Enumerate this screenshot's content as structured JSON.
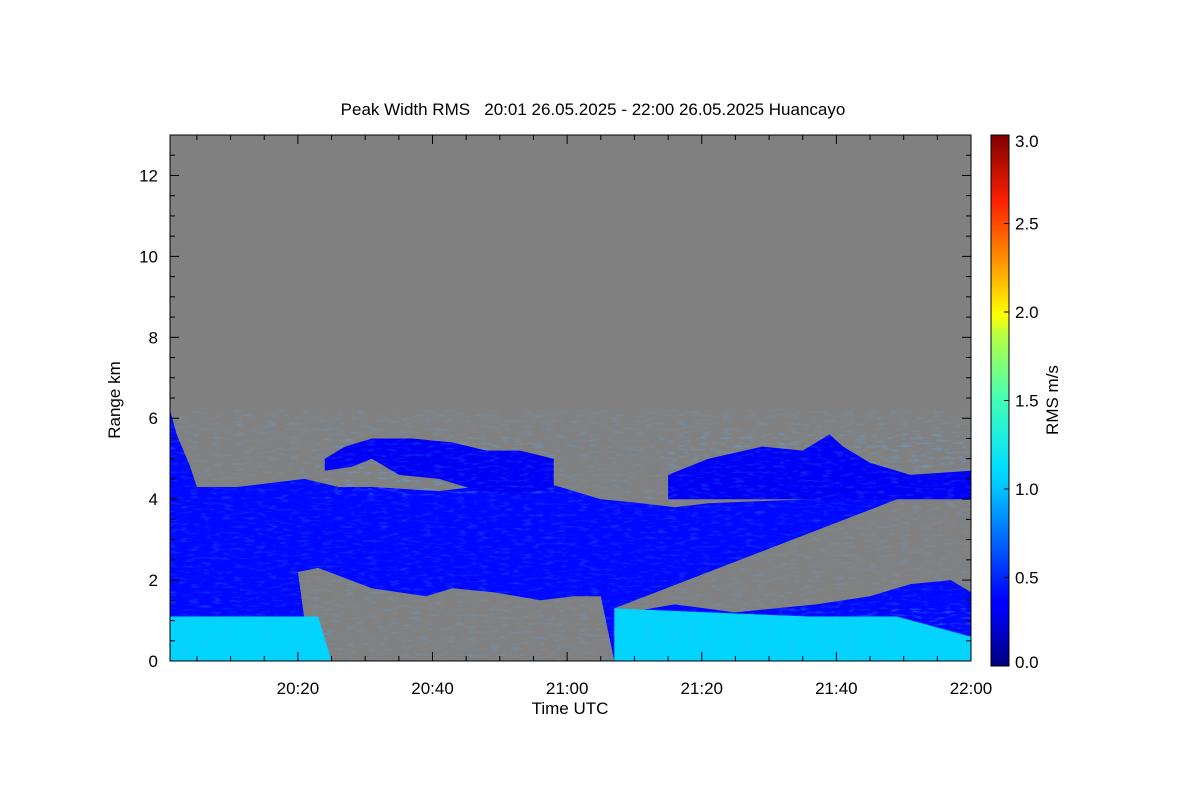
{
  "chart_data": {
    "type": "heatmap",
    "title": "Peak Width RMS   20:01 26.05.2025 - 22:00 26.05.2025 Huancayo",
    "xlabel": "Time UTC",
    "ylabel": "Range km",
    "colorbar_label": "RMS m/s",
    "x_range": [
      "20:01",
      "22:00"
    ],
    "y_range": [
      0,
      13
    ],
    "color_range": [
      0.0,
      3.0
    ],
    "colormap": "jet",
    "no_data_color": "#808080",
    "x_ticks": [
      {
        "label": "20:20",
        "minutes": 19
      },
      {
        "label": "20:40",
        "minutes": 39
      },
      {
        "label": "21:00",
        "minutes": 59
      },
      {
        "label": "21:20",
        "minutes": 79
      },
      {
        "label": "21:40",
        "minutes": 99
      },
      {
        "label": "22:00",
        "minutes": 119
      }
    ],
    "y_ticks": [
      {
        "label": "0",
        "value": 0
      },
      {
        "label": "2",
        "value": 2
      },
      {
        "label": "4",
        "value": 4
      },
      {
        "label": "6",
        "value": 6
      },
      {
        "label": "8",
        "value": 8
      },
      {
        "label": "10",
        "value": 10
      },
      {
        "label": "12",
        "value": 12
      }
    ],
    "colorbar_ticks": [
      {
        "label": "0.0",
        "value": 0.0
      },
      {
        "label": "0.5",
        "value": 0.5
      },
      {
        "label": "1.0",
        "value": 1.0
      },
      {
        "label": "1.5",
        "value": 1.5
      },
      {
        "label": "2.0",
        "value": 2.0
      },
      {
        "label": "2.5",
        "value": 2.5
      },
      {
        "label": "3.0",
        "value": 3.0
      }
    ],
    "echo_regions": [
      {
        "name": "main-layer",
        "top_km": [
          [
            0,
            6.2
          ],
          [
            1,
            5.6
          ],
          [
            3,
            4.8
          ],
          [
            4,
            4.3
          ],
          [
            10,
            4.3
          ],
          [
            20,
            4.5
          ],
          [
            25,
            4.3
          ],
          [
            30,
            4.3
          ],
          [
            40,
            4.2
          ],
          [
            50,
            4.4
          ],
          [
            56,
            4.4
          ],
          [
            64,
            4.0
          ],
          [
            70,
            3.9
          ],
          [
            75,
            3.8
          ],
          [
            80,
            3.9
          ],
          [
            95,
            4.0
          ],
          [
            105,
            4.1
          ],
          [
            114,
            4.3
          ],
          [
            119,
            4.7
          ]
        ],
        "bottom_km": [
          [
            0,
            0
          ],
          [
            24,
            0
          ],
          [
            20,
            1.0
          ],
          [
            19,
            2.2
          ],
          [
            22,
            2.3
          ],
          [
            30,
            1.8
          ],
          [
            38,
            1.6
          ],
          [
            42,
            1.8
          ],
          [
            48,
            1.7
          ],
          [
            55,
            1.5
          ],
          [
            60,
            1.6
          ],
          [
            64,
            1.6
          ],
          [
            66,
            0
          ],
          [
            119,
            0
          ],
          [
            119,
            1.7
          ],
          [
            116,
            2.0
          ],
          [
            110,
            1.9
          ],
          [
            104,
            1.6
          ],
          [
            96,
            1.4
          ],
          [
            90,
            1.3
          ],
          [
            84,
            1.2
          ],
          [
            75,
            1.4
          ],
          [
            68,
            1.2
          ],
          [
            66,
            1.3
          ]
        ],
        "typical_rms": 0.4
      },
      {
        "name": "upper-cloud-left",
        "top_km": [
          [
            23,
            5.0
          ],
          [
            26,
            5.3
          ],
          [
            30,
            5.5
          ],
          [
            36,
            5.5
          ],
          [
            42,
            5.4
          ],
          [
            47,
            5.2
          ],
          [
            52,
            5.2
          ],
          [
            57,
            5.0
          ]
        ],
        "bottom_km": [
          [
            23,
            4.7
          ],
          [
            27,
            4.8
          ],
          [
            30,
            5.0
          ],
          [
            34,
            4.6
          ],
          [
            40,
            4.5
          ],
          [
            46,
            4.2
          ],
          [
            52,
            4.1
          ],
          [
            57,
            4.3
          ]
        ],
        "typical_rms": 0.35
      },
      {
        "name": "upper-cloud-right",
        "top_km": [
          [
            74,
            4.6
          ],
          [
            80,
            5.0
          ],
          [
            88,
            5.3
          ],
          [
            94,
            5.2
          ],
          [
            98,
            5.6
          ],
          [
            100,
            5.3
          ],
          [
            104,
            4.9
          ],
          [
            110,
            4.6
          ],
          [
            119,
            4.7
          ]
        ],
        "bottom_km": [
          [
            74,
            4.0
          ],
          [
            119,
            4.0
          ]
        ],
        "typical_rms": 0.35
      },
      {
        "name": "surface-echo-left",
        "top_km": [
          [
            0,
            1.1
          ],
          [
            22,
            1.1
          ]
        ],
        "bottom_km": [
          [
            0,
            0
          ],
          [
            24,
            0
          ]
        ],
        "typical_rms": 1.0
      },
      {
        "name": "surface-echo-right",
        "top_km": [
          [
            66,
            1.3
          ],
          [
            80,
            1.2
          ],
          [
            95,
            1.1
          ],
          [
            108,
            1.1
          ],
          [
            119,
            0.6
          ]
        ],
        "bottom_km": [
          [
            66,
            0
          ],
          [
            119,
            0
          ]
        ],
        "typical_rms": 1.0
      }
    ]
  }
}
